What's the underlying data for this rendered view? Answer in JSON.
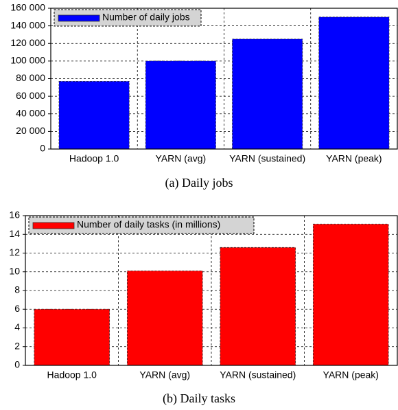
{
  "chart_data": [
    {
      "type": "bar",
      "caption": "(a)  Daily jobs",
      "categories": [
        "Hadoop 1.0",
        "YARN (avg)",
        "YARN (sustained)",
        "YARN (peak)"
      ],
      "series": [
        {
          "name": "Number of daily jobs",
          "color": "#0000ff",
          "values": [
            77000,
            100000,
            125000,
            150000
          ]
        }
      ],
      "ylim": [
        0,
        160000
      ],
      "yticks": [
        0,
        {
          "value": 20000,
          "label": "20 000"
        },
        {
          "value": 40000,
          "label": "40 000"
        },
        {
          "value": 60000,
          "label": "60 000"
        },
        {
          "value": 80000,
          "label": "80 000"
        },
        {
          "value": 100000,
          "label": "100 000"
        },
        {
          "value": 120000,
          "label": "120 000"
        },
        {
          "value": 140000,
          "label": "140 000"
        },
        {
          "value": 160000,
          "label": "160 000"
        }
      ],
      "grid": true,
      "legend": "top-left"
    },
    {
      "type": "bar",
      "caption": "(b)  Daily tasks",
      "categories": [
        "Hadoop 1.0",
        "YARN (avg)",
        "YARN (sustained)",
        "YARN (peak)"
      ],
      "series": [
        {
          "name": "Number of daily tasks (in millions)",
          "color": "#ff0000",
          "values": [
            6,
            10.1,
            12.6,
            15.1
          ]
        }
      ],
      "ylim": [
        0,
        16
      ],
      "yticks": [
        0,
        2,
        4,
        6,
        8,
        10,
        12,
        14,
        16
      ],
      "grid": true,
      "legend": "top-left"
    }
  ]
}
